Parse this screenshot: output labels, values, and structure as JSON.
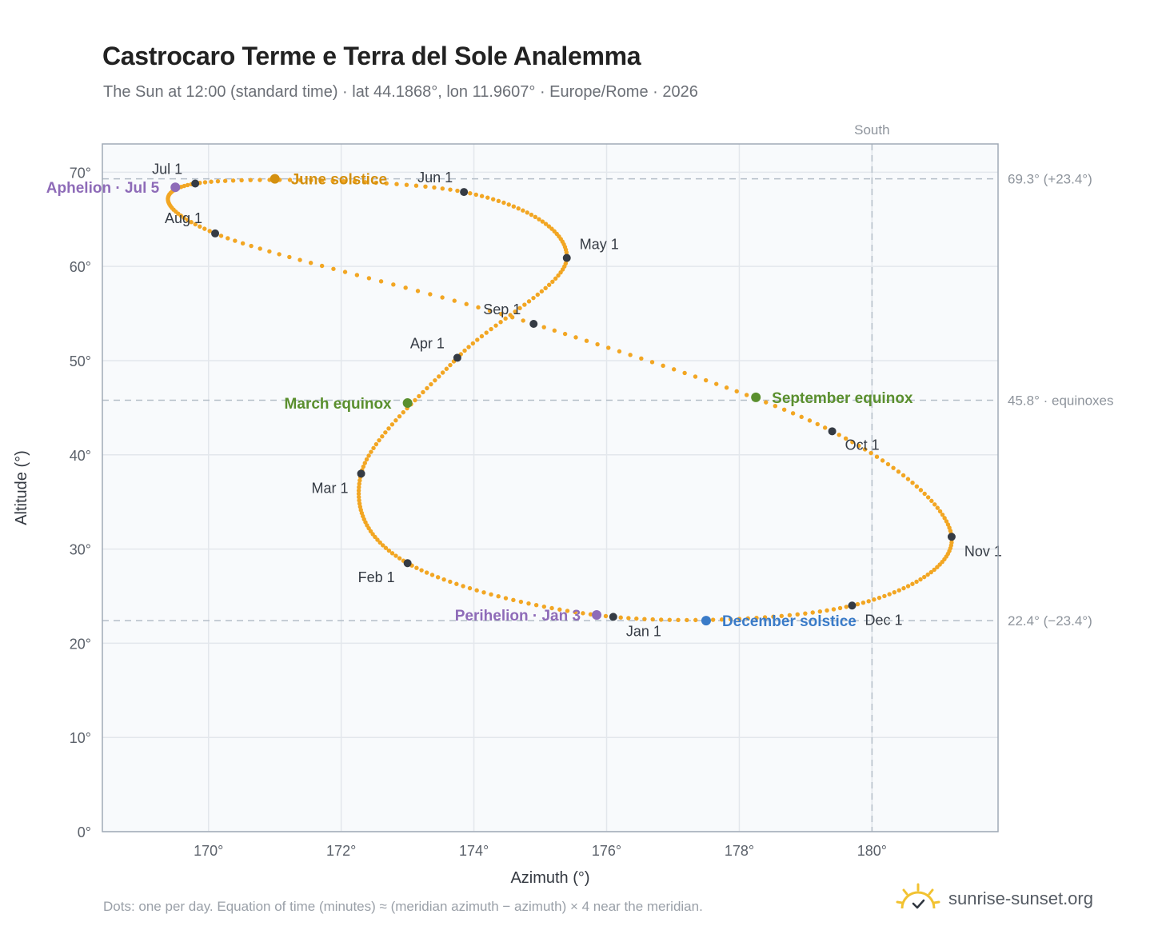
{
  "header": {
    "title": "Castrocaro Terme e Terra del Sole Analemma",
    "subtitle": "The Sun at 12:00 (standard time) · lat 44.1868°, lon 11.9607° · Europe/Rome · 2026"
  },
  "footer": {
    "note": "Dots: one per day. Equation of time (minutes) ≈ (meridian azimuth − azimuth) × 4 near the meridian.",
    "brand": "sunrise-sunset.org"
  },
  "colors": {
    "curve": "#f2a623",
    "month_marker": "#353b44",
    "june_solstice": "#d4900f",
    "december_solstice": "#3a7bc8",
    "equinox": "#5a8f2e",
    "apsis": "#8e6bb8",
    "grid": "#e3e7ec",
    "frame": "#a0aab6",
    "plot_bg": "#f8fafc",
    "reference": "#b4bec8"
  },
  "chart_data": {
    "type": "scatter",
    "title": "Castrocaro Terme e Terra del Sole Analemma",
    "xlabel": "Azimuth (°)",
    "ylabel": "Altitude (°)",
    "xlim": [
      168.4,
      181.9
    ],
    "ylim": [
      0,
      73
    ],
    "x_ticks": [
      170,
      172,
      174,
      176,
      178,
      180
    ],
    "x_tick_labels": [
      "170°",
      "172°",
      "174°",
      "176°",
      "178°",
      "180°"
    ],
    "y_ticks": [
      0,
      10,
      20,
      30,
      40,
      50,
      60,
      70
    ],
    "y_tick_labels": [
      "0°",
      "10°",
      "20°",
      "30°",
      "40°",
      "50°",
      "60°",
      "70°"
    ],
    "grid": true,
    "series": [
      {
        "points": [
          [
            176.1,
            22.8
          ],
          [
            173.0,
            28.5
          ],
          [
            172.3,
            38.0
          ],
          [
            173.75,
            50.3
          ],
          [
            175.4,
            60.9
          ],
          [
            173.85,
            67.9
          ],
          [
            169.8,
            68.8
          ],
          [
            170.1,
            63.5
          ],
          [
            174.9,
            53.9
          ],
          [
            179.4,
            42.5
          ],
          [
            181.2,
            31.3
          ],
          [
            179.7,
            24.0
          ]
        ]
      }
    ],
    "month_markers": [
      {
        "label": "Jan 1",
        "x": 176.1,
        "y": 22.8
      },
      {
        "label": "Feb 1",
        "x": 173.0,
        "y": 28.5
      },
      {
        "label": "Mar 1",
        "x": 172.3,
        "y": 38.0
      },
      {
        "label": "Apr 1",
        "x": 173.75,
        "y": 50.3
      },
      {
        "label": "May 1",
        "x": 175.4,
        "y": 60.9
      },
      {
        "label": "Jun 1",
        "x": 173.85,
        "y": 67.9
      },
      {
        "label": "Jul 1",
        "x": 169.8,
        "y": 68.8
      },
      {
        "label": "Aug 1",
        "x": 170.1,
        "y": 63.5
      },
      {
        "label": "Sep 1",
        "x": 174.9,
        "y": 53.9
      },
      {
        "label": "Oct 1",
        "x": 179.4,
        "y": 42.5
      },
      {
        "label": "Nov 1",
        "x": 181.2,
        "y": 31.3
      },
      {
        "label": "Dec 1",
        "x": 179.7,
        "y": 24.0
      }
    ],
    "events": [
      {
        "label": "June solstice",
        "x": 171.0,
        "y": 69.3,
        "color": "#d4900f"
      },
      {
        "label": "December solstice",
        "x": 177.5,
        "y": 22.4,
        "color": "#3a7bc8"
      },
      {
        "label": "March equinox",
        "x": 173.0,
        "y": 45.5,
        "color": "#5a8f2e"
      },
      {
        "label": "September equinox",
        "x": 178.25,
        "y": 46.1,
        "color": "#5a8f2e"
      },
      {
        "label": "Aphelion · Jul 5",
        "x": 169.5,
        "y": 68.4,
        "color": "#8e6bb8"
      },
      {
        "label": "Perihelion · Jan 3",
        "x": 175.85,
        "y": 23.0,
        "color": "#8e6bb8"
      }
    ],
    "reference_lines": [
      {
        "axis": "y",
        "value": 69.3,
        "label": "69.3° (+23.4°)"
      },
      {
        "axis": "y",
        "value": 45.8,
        "label": "45.8° · equinoxes"
      },
      {
        "axis": "y",
        "value": 22.4,
        "label": "22.4° (−23.4°)"
      },
      {
        "axis": "x",
        "value": 180,
        "label": "South"
      }
    ]
  }
}
